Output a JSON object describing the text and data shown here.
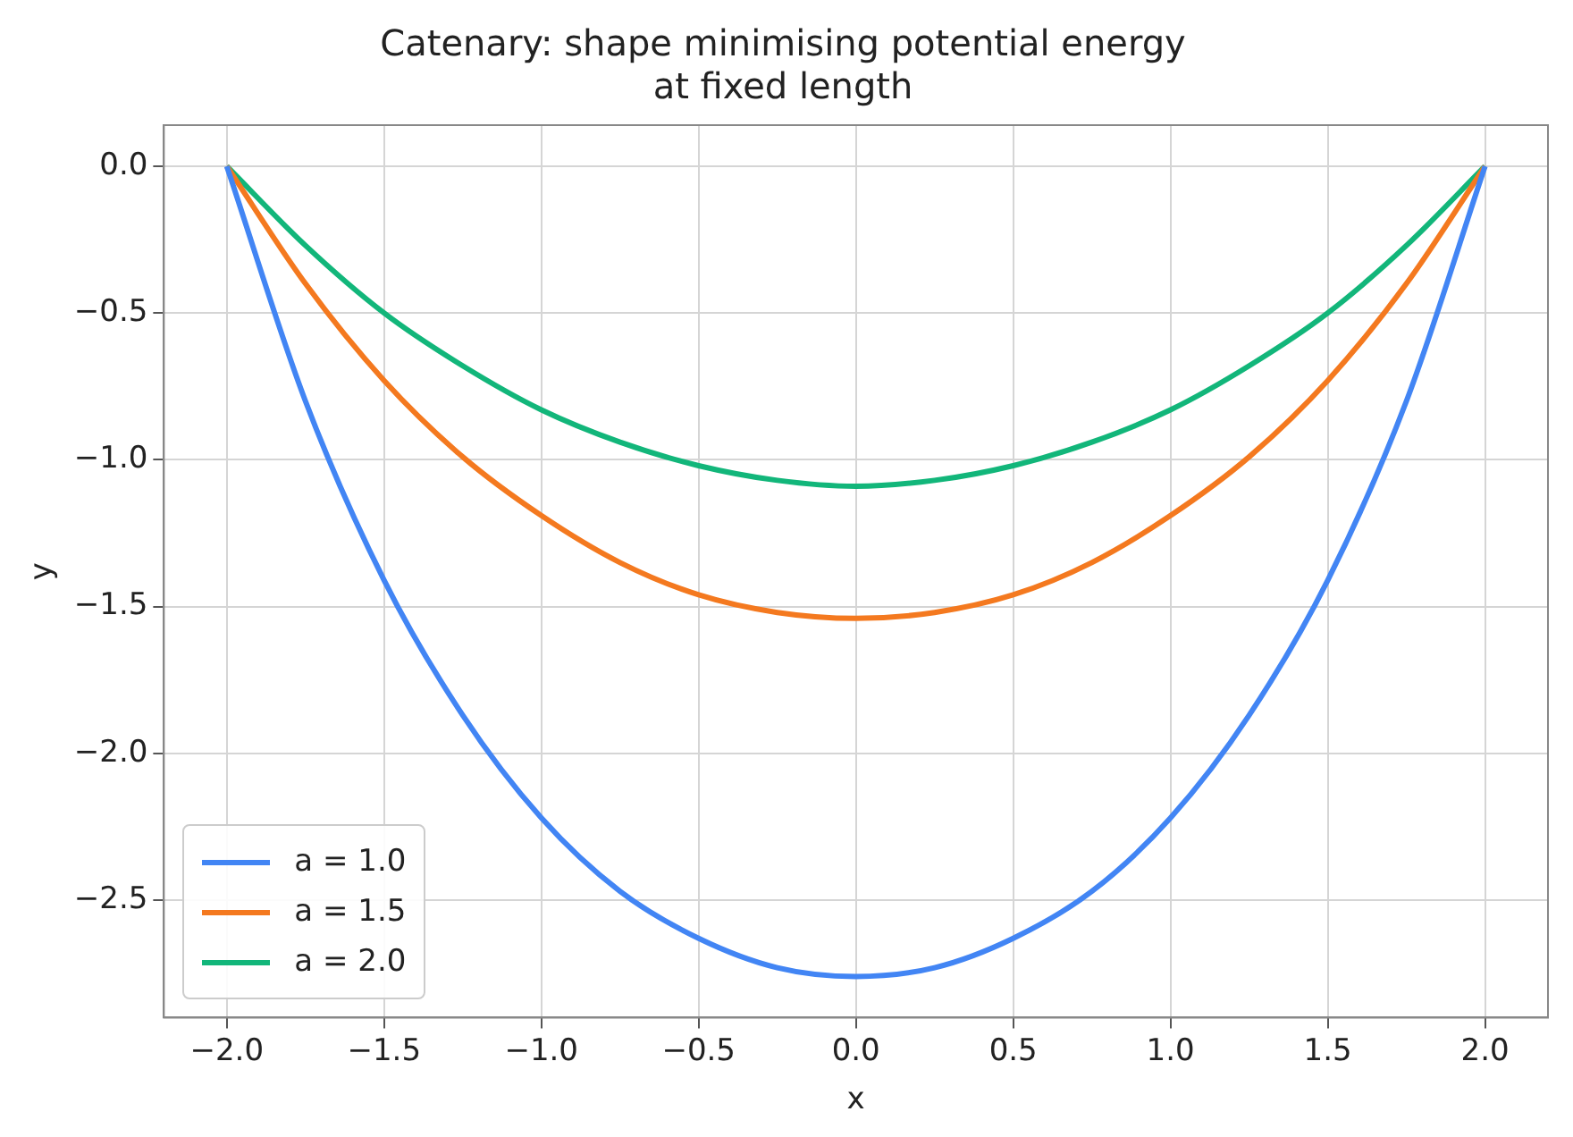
{
  "chart_data": {
    "type": "line",
    "title": "Catenary: shape minimising potential energy\nat fixed length",
    "xlabel": "x",
    "ylabel": "y",
    "x": [
      -2,
      -1.75,
      -1.5,
      -1.25,
      -1,
      -0.75,
      -0.5,
      -0.25,
      0,
      0.25,
      0.5,
      0.75,
      1,
      1.25,
      1.5,
      1.75,
      2
    ],
    "series": [
      {
        "name": "a = 1.0",
        "color": "#4285f4",
        "values": [
          0,
          -0.8,
          -1.41,
          -1.87,
          -2.22,
          -2.47,
          -2.63,
          -2.73,
          -2.76,
          -2.73,
          -2.63,
          -2.47,
          -2.22,
          -1.87,
          -1.41,
          -0.8,
          0
        ]
      },
      {
        "name": "a = 1.5",
        "color": "#f4791f",
        "values": [
          0,
          -0.4,
          -0.73,
          -0.99,
          -1.19,
          -1.35,
          -1.46,
          -1.52,
          -1.54,
          -1.52,
          -1.46,
          -1.35,
          -1.19,
          -0.99,
          -0.73,
          -0.4,
          0
        ]
      },
      {
        "name": "a = 2.0",
        "color": "#12b67a",
        "values": [
          0,
          -0.27,
          -0.5,
          -0.68,
          -0.83,
          -0.94,
          -1.02,
          -1.07,
          -1.09,
          -1.07,
          -1.02,
          -0.94,
          -0.83,
          -0.68,
          -0.5,
          -0.27,
          0
        ]
      }
    ],
    "xlim": [
      -2.2,
      2.2
    ],
    "xticks": [
      {
        "value": -2,
        "label": "−2.0"
      },
      {
        "value": -1.5,
        "label": "−1.5"
      },
      {
        "value": -1,
        "label": "−1.0"
      },
      {
        "value": -0.5,
        "label": "−0.5"
      },
      {
        "value": 0,
        "label": "0.0"
      },
      {
        "value": 0.5,
        "label": "0.5"
      },
      {
        "value": 1,
        "label": "1.0"
      },
      {
        "value": 1.5,
        "label": "1.5"
      },
      {
        "value": 2,
        "label": "2.0"
      }
    ],
    "ylim": [
      -2.9,
      0.14
    ],
    "yticks": [
      {
        "value": -2.5,
        "label": "−2.5"
      },
      {
        "value": -2,
        "label": "−2.0"
      },
      {
        "value": -1.5,
        "label": "−1.5"
      },
      {
        "value": -1,
        "label": "−1.0"
      },
      {
        "value": -0.5,
        "label": "−0.5"
      },
      {
        "value": 0,
        "label": "0.0"
      }
    ],
    "grid": true,
    "legend": "bottom left",
    "marker": "none",
    "line_style": "solid"
  }
}
